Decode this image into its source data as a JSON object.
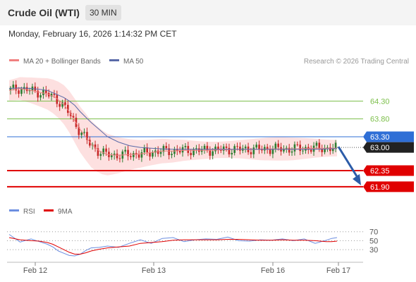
{
  "header": {
    "title": "Crude Oil (WTI)",
    "timeframe": "30 MIN"
  },
  "datetime": "Monday, February 16, 2026 1:14:32 PM CET",
  "legend": {
    "ma_bb": "MA 20 + Bollinger Bands",
    "ma50": "MA 50",
    "copyright": "Research © 2026 Trading Central",
    "rsi": "RSI",
    "rsi_ma": "9MA"
  },
  "colors": {
    "bollinger_fill": "#fde0e0",
    "ma20": "#f08080",
    "ma50": "#5a6aa8",
    "resistance": "#7cbf4a",
    "pivot": "#2f6fd6",
    "support": "#e00000",
    "current": "#222222",
    "rsi": "#6c8ee0",
    "rsi_ma": "#e00000",
    "arrow": "#2c5ca8"
  },
  "chart_data": [
    {
      "type": "candlestick",
      "title": "Crude Oil (WTI)",
      "timeframe": "30 MIN",
      "y_range": [
        61.6,
        64.86
      ],
      "x_ticks": [
        "Feb 12",
        "Feb 13",
        "Feb 16",
        "Feb 17"
      ],
      "levels": [
        {
          "label": "64.30",
          "value": 64.3,
          "kind": "resistance"
        },
        {
          "label": "63.80",
          "value": 63.8,
          "kind": "resistance"
        },
        {
          "label": "63.30",
          "value": 63.3,
          "kind": "pivot"
        },
        {
          "label": "63.00",
          "value": 63.0,
          "kind": "current"
        },
        {
          "label": "62.35",
          "value": 62.35,
          "kind": "support"
        },
        {
          "label": "61.90",
          "value": 61.9,
          "kind": "support"
        }
      ],
      "series": [
        {
          "name": "MA 20 + Bollinger Bands",
          "x": [
            0,
            4,
            8,
            11,
            14,
            17,
            20,
            22,
            24,
            26,
            28,
            30,
            33,
            36,
            40,
            44,
            48,
            52,
            56,
            60,
            64,
            68,
            72,
            76,
            80,
            84,
            88,
            92,
            96,
            100,
            104,
            108,
            112,
            116,
            120
          ],
          "values": [
            64.6,
            64.65,
            64.6,
            64.55,
            64.5,
            64.4,
            64.2,
            64.0,
            63.75,
            63.5,
            63.3,
            63.1,
            62.9,
            62.8,
            62.78,
            62.8,
            62.82,
            62.86,
            62.9,
            62.9,
            62.92,
            62.92,
            62.92,
            62.93,
            62.94,
            62.95,
            62.95,
            62.95,
            62.96,
            62.96,
            62.96,
            62.97,
            62.98,
            62.98,
            62.98
          ]
        },
        {
          "name": "MA 50",
          "x": [
            0,
            4,
            8,
            11,
            14,
            17,
            20,
            22,
            24,
            26,
            28,
            30,
            33,
            36,
            40,
            44,
            48,
            52,
            56,
            60,
            64,
            68,
            72,
            76,
            80,
            84,
            88,
            92,
            96,
            100,
            104,
            108,
            112,
            116,
            120
          ],
          "values": [
            64.65,
            64.67,
            64.65,
            64.63,
            64.6,
            64.5,
            64.4,
            64.3,
            64.18,
            64.0,
            63.85,
            63.7,
            63.5,
            63.3,
            63.15,
            63.05,
            63.0,
            62.98,
            62.96,
            62.95,
            62.95,
            62.95,
            62.95,
            62.95,
            62.95,
            62.95,
            62.95,
            62.95,
            62.95,
            62.95,
            62.95,
            62.95,
            62.95,
            62.96,
            62.97
          ]
        }
      ]
    },
    {
      "type": "line",
      "title": "RSI",
      "y_ticks": [
        70,
        50,
        30
      ],
      "y_range": [
        5,
        90
      ],
      "series": [
        {
          "name": "RSI",
          "x": [
            0,
            4,
            8,
            11,
            14,
            16,
            18,
            20,
            22,
            24,
            26,
            28,
            30,
            33,
            36,
            40,
            44,
            48,
            52,
            56,
            60,
            64,
            68,
            72,
            76,
            80,
            84,
            88,
            92,
            96,
            100,
            104,
            108,
            112,
            116,
            118,
            120
          ],
          "values": [
            64,
            47,
            54,
            48,
            42,
            36,
            27,
            22,
            17,
            16,
            20,
            28,
            34,
            35,
            38,
            35,
            44,
            52,
            44,
            55,
            57,
            48,
            52,
            54,
            53,
            58,
            50,
            49,
            52,
            51,
            54,
            50,
            54,
            44,
            51,
            55,
            57
          ]
        },
        {
          "name": "9MA",
          "x": [
            0,
            4,
            8,
            11,
            14,
            16,
            18,
            20,
            22,
            24,
            26,
            28,
            30,
            33,
            36,
            40,
            44,
            48,
            52,
            56,
            60,
            64,
            68,
            72,
            76,
            80,
            84,
            88,
            92,
            96,
            100,
            104,
            108,
            112,
            116,
            118,
            120
          ],
          "values": [
            57,
            52,
            50,
            49,
            46,
            42,
            36,
            30,
            24,
            20,
            20,
            23,
            27,
            31,
            34,
            36,
            38,
            44,
            46,
            48,
            51,
            52,
            52,
            52,
            52,
            53,
            53,
            52,
            51,
            51,
            52,
            51,
            51,
            50,
            48,
            48,
            49
          ]
        }
      ]
    }
  ]
}
